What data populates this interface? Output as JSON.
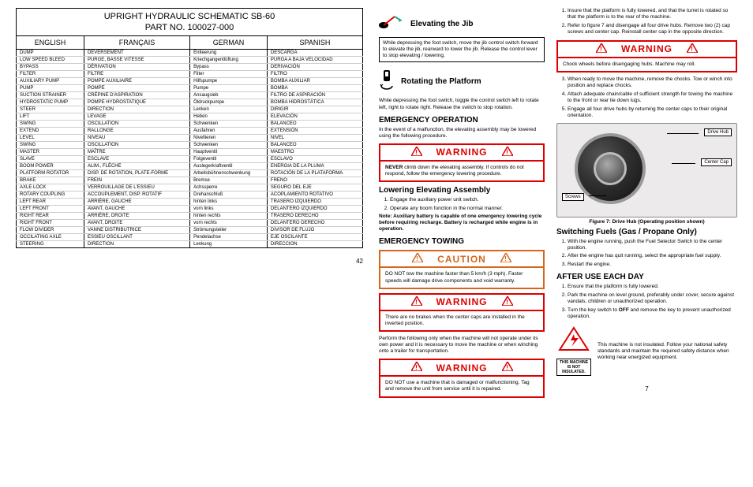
{
  "schematic": {
    "title": "UPRIGHT HYDRAULIC SCHEMATIC SB-60",
    "part_no": "PART NO. 100027-000",
    "columns": [
      "ENGLISH",
      "FRANÇAIS",
      "GERMAN",
      "SPANISH"
    ],
    "rows": [
      [
        "DUMP",
        "DEVERSEMENT",
        "Entleerung",
        "DESCARGA"
      ],
      [
        "LOW SPEED BLEED",
        "PURGE, BASSE VITESSE",
        "Kriechgangentlüftung",
        "PURGA A BAJA VELOCIDAD"
      ],
      [
        "BYPASS",
        "DÉRIVATION",
        "Bypass",
        "DERIVACIÓN"
      ],
      [
        "FILTER",
        "FILTRE",
        "Filter",
        "FILTRO"
      ],
      [
        "AUXILIARY PUMP",
        "POMPE AUXILIAIRE",
        "Hilfspumpe",
        "BOMBA AUXILIAR"
      ],
      [
        "PUMP",
        "POMPE",
        "Pumpe",
        "BOMBA"
      ],
      [
        "SUCTION STRAINER",
        "CRÉPINE D'ASPIRATION",
        "Ansaugsieb",
        "FILTRO DE ASPIRACIÓN"
      ],
      [
        "HYDROSTATIC PUMP",
        "POMPE HYDROSTATIQUE",
        "Öldruckpumpe",
        "BOMBA HIDROSTÁTICA"
      ],
      [
        "STEER",
        "DIRECTION",
        "Lenken",
        "DIRIGIR"
      ],
      [
        "LIFT",
        "LEVAGE",
        "Heben",
        "ELEVACIÓN"
      ],
      [
        "SWING",
        "OSCILLATION",
        "Schwenken",
        "BALANCEO"
      ],
      [
        "EXTEND",
        "RALLONGE",
        "Ausfahren",
        "EXTENSIÓN"
      ],
      [
        "LEVEL",
        "NIVEAU",
        "Nivellieren",
        "NIVEL"
      ],
      [
        "SWING",
        "OSCILLATION",
        "Schwenken",
        "BALANCEO"
      ],
      [
        "MASTER",
        "MAÎTRE",
        "Hauptventil",
        "MAESTRO"
      ],
      [
        "SLAVE",
        "ESCLAVE",
        "Folgeventil",
        "ESCLAVO"
      ],
      [
        "BOOM POWER",
        "ALIM., FLÈCHE",
        "Auslegerkraftventil",
        "ENERGIA DE LA PLUMA"
      ],
      [
        "PLATFORM ROTATOR",
        "DISP. DE ROTATION, PLATE-FORME",
        "Arbeitsbühnenschwenkung",
        "ROTACIÓN DE LA PLATAFORMA"
      ],
      [
        "BRAKE",
        "FREIN",
        "Bremse",
        "FRENO"
      ],
      [
        "AXLE LOCK",
        "VERROUILLAGE DE L'ESSIEU",
        "Achssperre",
        "SEGURO DEL EJE"
      ],
      [
        "ROTARY COUPLING",
        "ACCOUPLEMENT, DISP. ROTATIF",
        "Drehanschluß",
        "ACOPLAMIENTO ROTATIVO"
      ],
      [
        "LEFT REAR",
        "ARRIÈRE, GAUCHE",
        "hinten links",
        "TRASERO IZQUIERDO"
      ],
      [
        "LEFT FRONT",
        "AVANT, GAUCHE",
        "vorn links",
        "DELANTERO IZQUIERDO"
      ],
      [
        "RIGHT REAR",
        "ARRIÈRE, DROITE",
        "hinten rechts",
        "TRASERO DERECHO"
      ],
      [
        "RIGHT FRONT",
        "AVANT, DROITE",
        "vorn rechts",
        "DELANTERO DERECHO"
      ],
      [
        "FLOW DIVIDER",
        "VANNE DISTRIBUTRICE",
        "Strömungsteiler",
        "DIVISOR DE FLUJO"
      ],
      [
        "OCCILATING AXLE",
        "ESSIEU OSCILLANT",
        "Pendelachse",
        "EJE OSCILANTE"
      ],
      [
        "STEERING",
        "DIRECTION",
        "Lenkung",
        "DIRECCION"
      ]
    ],
    "pagenum_left": "42"
  },
  "mid": {
    "elevating_jib": {
      "heading": "Elevating the Jib",
      "text": "While depressing the foot switch, move the jib control switch forward to elevate the jib, rearward to lower the jib. Release the control lever to stop elevating / lowering."
    },
    "rotating_platform": {
      "heading": "Rotating the Platform",
      "text": "While depressing the foot switch, toggle the control switch left to rotate left, right to rotate right. Release the switch to stop rotation."
    },
    "emergency_operation": {
      "heading": "EMERGENCY OPERATION",
      "intro": "In the event of a malfunction, the elevating assembly may be lowered using the following procedure.",
      "warn_label": "WARNING",
      "warn_text": "NEVER climb down the elevating assembly. If controls do not respond, follow the emergency lowering procedure."
    },
    "lowering": {
      "heading": "Lowering Elevating Assembly",
      "steps": [
        "Engage the auxiliary power unit switch.",
        "Operate any boom function in the normal manner."
      ],
      "note": "Note: Auxiliary battery is capable of one emergency lowering cycle before requiring recharge. Battery is recharged while engine is in operation."
    },
    "towing": {
      "heading": "EMERGENCY TOWING",
      "caution_label": "CAUTION",
      "caution_text": "DO NOT tow the machine faster than 5 km/h (3 mph). Faster speeds will damage drive components and void warranty.",
      "warn_label": "WARNING",
      "warn1": "There are no brakes when the center caps are installed in the inverted position.",
      "pre_text": "Perform the following only when the machine will not operate under its own power and it is necessary to move the machine or when winching onto a trailer for transportation.",
      "warn2": "DO NOT use a machine that is damaged or malfunctioning. Tag and remove the unit from service until it is repaired."
    }
  },
  "right": {
    "towing_steps": [
      "Insure that the platform is fully lowered, and that the turret is rotated so that the platform is to the rear of the machine.",
      "Refer to figure 7 and disengage all four drive hubs. Remove two (2) cap screws and center cap. Reinstall center cap in the opposite direction."
    ],
    "warn_label": "WARNING",
    "warn_chock": "Chock wheels before disengaging hubs. Machine may roll.",
    "towing_steps_cont": [
      "When ready to move the machine, remove the chocks. Tow or winch into position and replace chocks.",
      "Attach adequate chain/cable of sufficient strength for towing the machine to the front or rear tie down lugs.",
      "Engage all four drive hubs by returning the center caps to their original orientation."
    ],
    "figure": {
      "caption": "Figure 7: Drive Hub (Operating position shown)",
      "labels": {
        "drive_hub": "Drive Hub",
        "center_cap": "Center Cap",
        "screws": "Screws"
      }
    },
    "fuels": {
      "heading": "Switching Fuels (Gas / Propane Only)",
      "steps": [
        "With the engine running, push the Fuel Selector Switch to the center position.",
        "After the engine has quit running, select the appropriate fuel supply.",
        "Restart the engine."
      ]
    },
    "after_use": {
      "heading": "AFTER USE EACH DAY",
      "steps": [
        "Ensure that the platform is fully lowered.",
        "Park the machine on level ground, preferably under cover, secure against vandals, children or unauthorized operation.",
        "Turn the key switch to OFF and remove the key to prevent unauthorized operation."
      ]
    },
    "safety": {
      "icon_text": "THIS MACHINE IS NOT INSULATED.",
      "text": "This machine is not insulated. Follow your national safety standards and maintain the required safety distance when working near energized equipment."
    },
    "pagenum_right": "7"
  }
}
